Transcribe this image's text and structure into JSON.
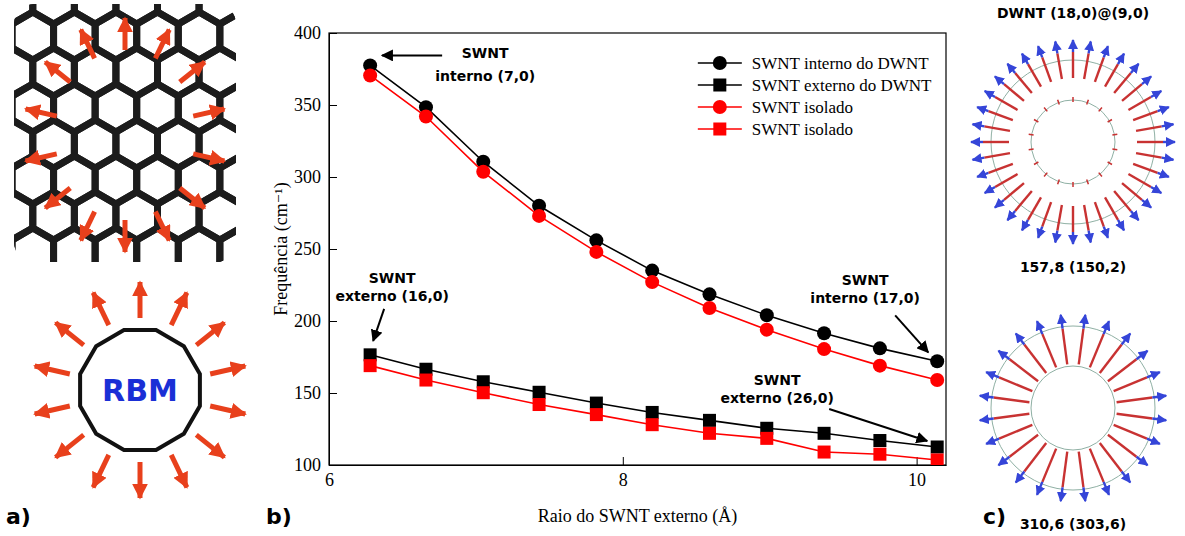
{
  "panel_labels": [
    "a)",
    "b)",
    "c)"
  ],
  "panel_a": {
    "text": "RBM"
  },
  "chart_data": {
    "type": "line",
    "x_label": "Raio do SWNT externo (Å)",
    "y_label": "Frequência (cm⁻¹)",
    "x": [
      6.28,
      6.66,
      7.05,
      7.43,
      7.82,
      8.2,
      8.59,
      8.98,
      9.37,
      9.75,
      10.14
    ],
    "series": [
      {
        "name": "SWNT interno do DWNT",
        "color": "#000000",
        "marker": "circle",
        "line_style": "solid",
        "values": [
          377.5,
          348.5,
          310.6,
          280,
          256,
          235,
          218.5,
          204,
          191.5,
          181,
          172
        ]
      },
      {
        "name": "SWNT externo do DWNT",
        "color": "#000000",
        "marker": "square",
        "line_style": "solid",
        "values": [
          176.5,
          166.5,
          157.8,
          150.5,
          143,
          136.5,
          131,
          125.5,
          122,
          117,
          112.5
        ]
      },
      {
        "name": "SWNT isolado",
        "color": "#ff0000",
        "marker": "circle",
        "line_style": "solid",
        "values": [
          370.5,
          342,
          303.6,
          273,
          248,
          227,
          209,
          194,
          180.5,
          169,
          159
        ]
      },
      {
        "name": "SWNT isolado",
        "color": "#ff0000",
        "marker": "square",
        "line_style": "solid",
        "values": [
          169,
          159,
          150.2,
          142,
          135,
          128,
          122,
          118.5,
          109,
          107.5,
          103.5
        ]
      }
    ],
    "xlim": [
      6,
      10.2
    ],
    "xticks": [
      6,
      8,
      10
    ],
    "ylim": [
      100,
      400
    ],
    "yticks": [
      100,
      150,
      200,
      250,
      300,
      350,
      400
    ],
    "legend": "top-right",
    "annotations": [
      "SWNT\ninterno (7,0)",
      "SWNT\nexterno (16,0)",
      "SWNT\ninterno (17,0)",
      "SWNT\nexterno (26,0)"
    ]
  },
  "panel_c": {
    "title": "DWNT (18,0)@(9,0)",
    "modes": [
      "157,8 (150,2)",
      "310,6 (303,6)"
    ]
  }
}
